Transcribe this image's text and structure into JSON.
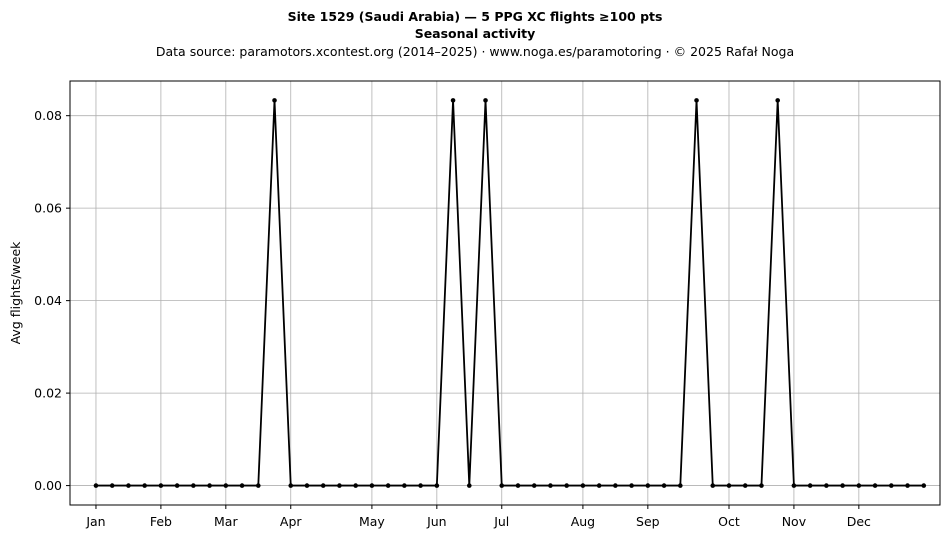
{
  "chart_data": {
    "type": "line",
    "title": "Site 1529 (Saudi Arabia)  —  5 PPG XC flights ≥100 pts",
    "subtitle": "Seasonal activity",
    "source": "Data source: paramotors.xcontest.org (2014–2025)  ·  www.noga.es/paramotoring  ·  © 2025 Rafał Noga",
    "xlabel": "",
    "ylabel": "Avg flights/week",
    "x_ticks": [
      {
        "label": "Jan",
        "week": 1
      },
      {
        "label": "Feb",
        "week": 5
      },
      {
        "label": "Mar",
        "week": 9
      },
      {
        "label": "Apr",
        "week": 13
      },
      {
        "label": "May",
        "week": 18
      },
      {
        "label": "Jun",
        "week": 22
      },
      {
        "label": "Jul",
        "week": 26
      },
      {
        "label": "Aug",
        "week": 31
      },
      {
        "label": "Sep",
        "week": 35
      },
      {
        "label": "Oct",
        "week": 40
      },
      {
        "label": "Nov",
        "week": 44
      },
      {
        "label": "Dec",
        "week": 48
      }
    ],
    "y_ticks": [
      "0.00",
      "0.02",
      "0.04",
      "0.06",
      "0.08"
    ],
    "xlim": [
      -0.6,
      53.0
    ],
    "ylim": [
      -0.0042,
      0.0875
    ],
    "grid": true,
    "color": "#000000",
    "series": [
      {
        "name": "",
        "x": [
          1,
          2,
          3,
          4,
          5,
          6,
          7,
          8,
          9,
          10,
          11,
          12,
          13,
          14,
          15,
          16,
          17,
          18,
          19,
          20,
          21,
          22,
          23,
          24,
          25,
          26,
          27,
          28,
          29,
          30,
          31,
          32,
          33,
          34,
          35,
          36,
          37,
          38,
          39,
          40,
          41,
          42,
          43,
          44,
          45,
          46,
          47,
          48,
          49,
          50,
          51,
          52
        ],
        "y": [
          0,
          0,
          0,
          0,
          0,
          0,
          0,
          0,
          0,
          0,
          0,
          0.0833,
          0,
          0,
          0,
          0,
          0,
          0,
          0,
          0,
          0,
          0,
          0.0833,
          0,
          0.0833,
          0,
          0,
          0,
          0,
          0,
          0,
          0,
          0,
          0,
          0,
          0,
          0,
          0.0833,
          0,
          0,
          0,
          0,
          0.0833,
          0,
          0,
          0,
          0,
          0,
          0,
          0,
          0,
          0
        ]
      }
    ]
  }
}
